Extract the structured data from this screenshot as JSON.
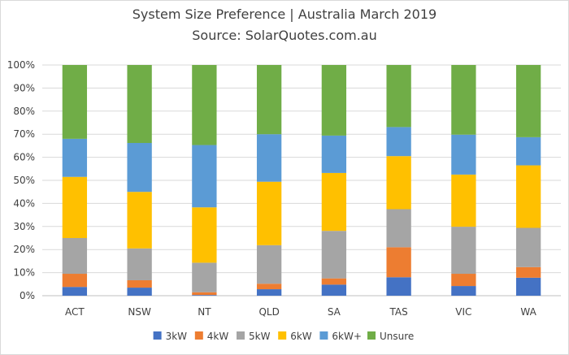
{
  "chart_data": {
    "type": "bar",
    "stacked": true,
    "title": "System Size Preference  | Australia March 2019",
    "subtitle": "Source: SolarQuotes.com.au",
    "categories": [
      "ACT",
      "NSW",
      "NT",
      "QLD",
      "SA",
      "TAS",
      "VIC",
      "WA"
    ],
    "y_ticks": [
      "0%",
      "10%",
      "20%",
      "30%",
      "40%",
      "50%",
      "60%",
      "70%",
      "80%",
      "90%",
      "100%"
    ],
    "ylim": [
      0,
      100
    ],
    "grid": true,
    "legend_position": "bottom",
    "series": [
      {
        "name": "3kW",
        "color": "#4472c4",
        "values": [
          3.8,
          3.5,
          0.3,
          2.8,
          4.8,
          8.0,
          4.2,
          7.8
        ]
      },
      {
        "name": "4kW",
        "color": "#ed7d31",
        "values": [
          5.7,
          3.2,
          1.2,
          2.4,
          2.7,
          13.0,
          5.3,
          4.6
        ]
      },
      {
        "name": "5kW",
        "color": "#a5a5a5",
        "values": [
          15.5,
          13.8,
          12.8,
          16.7,
          20.6,
          16.5,
          20.4,
          17.0
        ]
      },
      {
        "name": "6kW",
        "color": "#ffc000",
        "values": [
          26.5,
          24.5,
          24.0,
          27.5,
          25.1,
          23.0,
          22.6,
          27.1
        ]
      },
      {
        "name": "6kW+",
        "color": "#5b9bd5",
        "values": [
          16.5,
          21.2,
          27.0,
          20.6,
          16.2,
          12.6,
          17.3,
          12.2
        ]
      },
      {
        "name": "Unsure",
        "color": "#70ad47",
        "values": [
          32.0,
          33.8,
          34.7,
          30.0,
          30.6,
          26.9,
          30.2,
          31.3
        ]
      }
    ]
  }
}
